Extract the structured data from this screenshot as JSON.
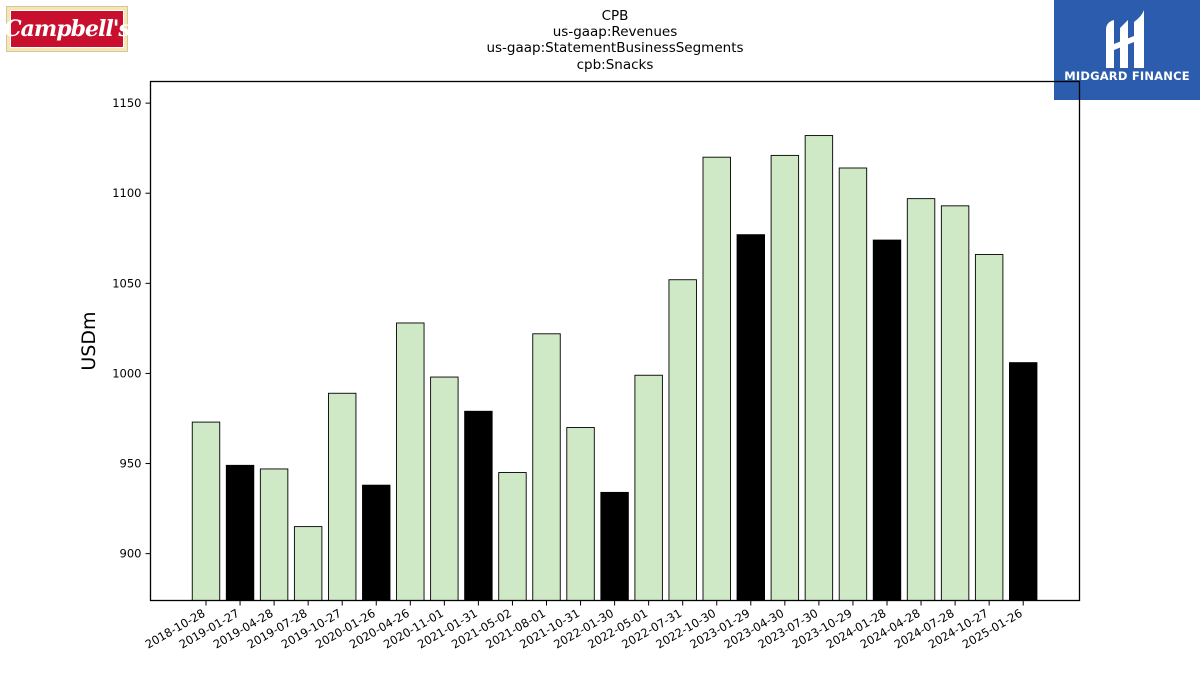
{
  "logos": {
    "left_wordmark": "Campbell's",
    "right_brand": "MIDGARD FINANCE"
  },
  "colors": {
    "bar_default": "#cfe9c6",
    "bar_highlight": "#000000",
    "bar_edge": "#000000",
    "logo_left_red": "#c8102e",
    "logo_right_blue": "#2b5cad"
  },
  "chart_data": {
    "type": "bar",
    "title_lines": [
      "CPB",
      "us-gaap:Revenues",
      "us-gaap:StatementBusinessSegments",
      "cpb:Snacks"
    ],
    "xlabel": "",
    "ylabel": "USDm",
    "ylim": [
      874,
      1162
    ],
    "yticks": [
      900,
      950,
      1000,
      1050,
      1100,
      1150
    ],
    "grid": false,
    "categories": [
      "2018-10-28",
      "2019-01-27",
      "2019-04-28",
      "2019-07-28",
      "2019-10-27",
      "2020-01-26",
      "2020-04-26",
      "2020-11-01",
      "2021-01-31",
      "2021-05-02",
      "2021-08-01",
      "2021-10-31",
      "2022-01-30",
      "2022-05-01",
      "2022-07-31",
      "2022-10-30",
      "2023-01-29",
      "2023-04-30",
      "2023-07-30",
      "2023-10-29",
      "2024-01-28",
      "2024-04-28",
      "2024-07-28",
      "2024-10-27",
      "2025-01-26"
    ],
    "values": [
      973,
      949,
      947,
      915,
      989,
      938,
      1028,
      998,
      979,
      945,
      1022,
      970,
      934,
      999,
      1052,
      1120,
      1077,
      1121,
      1132,
      1114,
      1074,
      1097,
      1093,
      1066,
      1006
    ],
    "highlight": [
      false,
      true,
      false,
      false,
      false,
      true,
      false,
      false,
      true,
      false,
      false,
      false,
      true,
      false,
      false,
      false,
      true,
      false,
      false,
      false,
      true,
      false,
      false,
      false,
      true
    ]
  }
}
